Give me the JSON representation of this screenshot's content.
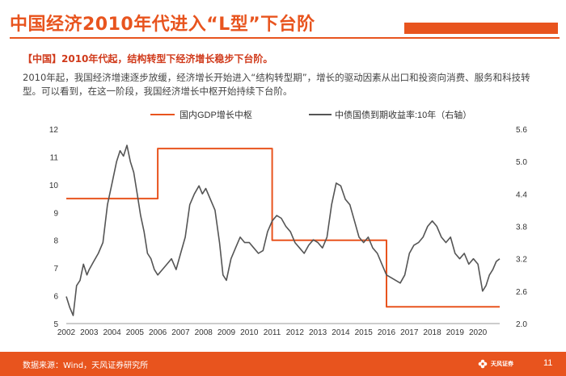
{
  "slide": {
    "title": "中国经济2010年代进入“L型”下台阶",
    "highlight": "【中国】2010年代起，结构转型下经济增长稳步下台阶。",
    "body": "2010年起，我国经济增速逐步放缓，经济增长开始进入“结构转型期”，增长的驱动因素从出口和投资向消费、服务和科技转型。可以看到，在这一阶段，我国经济增长中枢开始持续下台阶。",
    "source": "数据来源：Wind，天风证券研究所",
    "page_number": "11",
    "logo_text": "天风证券",
    "accent_color": "#e8541e"
  },
  "chart_data": {
    "type": "line",
    "xlim": [
      2002,
      2020.95
    ],
    "x_ticks": [
      "2002",
      "2003",
      "2004",
      "2005",
      "2006",
      "2007",
      "2008",
      "2009",
      "2010",
      "2011",
      "2012",
      "2013",
      "2014",
      "2015",
      "2016",
      "2017",
      "2018",
      "2019",
      "2020"
    ],
    "ylim_left": [
      5,
      12
    ],
    "y_ticks_left": [
      "5",
      "6",
      "7",
      "8",
      "9",
      "10",
      "11",
      "12"
    ],
    "ylim_right": [
      2.0,
      5.6
    ],
    "y_ticks_right": [
      "2.0",
      "2.6",
      "3.2",
      "3.8",
      "4.4",
      "5.0",
      "5.6"
    ],
    "grid": false,
    "legend_position": "top",
    "series": [
      {
        "name": "国内GDP增长中枢",
        "axis": "left",
        "color": "#e8541e",
        "style": "step",
        "x": [
          2002,
          2006,
          2006,
          2011,
          2011,
          2016,
          2016,
          2020.95
        ],
        "values": [
          9.5,
          9.5,
          11.3,
          11.3,
          8.0,
          8.0,
          5.6,
          5.6
        ]
      },
      {
        "name": "中债国债到期收益率:10年（右轴）",
        "axis": "right",
        "color": "#555555",
        "style": "line",
        "x": [
          2002.0,
          2002.15,
          2002.3,
          2002.45,
          2002.6,
          2002.75,
          2002.9,
          2003.0,
          2003.2,
          2003.4,
          2003.6,
          2003.8,
          2004.0,
          2004.2,
          2004.35,
          2004.5,
          2004.65,
          2004.8,
          2004.95,
          2005.1,
          2005.25,
          2005.4,
          2005.55,
          2005.7,
          2005.85,
          2006.0,
          2006.2,
          2006.4,
          2006.6,
          2006.8,
          2007.0,
          2007.2,
          2007.4,
          2007.6,
          2007.8,
          2007.95,
          2008.1,
          2008.3,
          2008.5,
          2008.7,
          2008.85,
          2009.0,
          2009.2,
          2009.4,
          2009.6,
          2009.8,
          2010.0,
          2010.2,
          2010.4,
          2010.6,
          2010.8,
          2011.0,
          2011.2,
          2011.4,
          2011.6,
          2011.8,
          2012.0,
          2012.2,
          2012.4,
          2012.6,
          2012.8,
          2013.0,
          2013.2,
          2013.4,
          2013.6,
          2013.8,
          2014.0,
          2014.2,
          2014.4,
          2014.6,
          2014.8,
          2015.0,
          2015.2,
          2015.4,
          2015.6,
          2015.8,
          2016.0,
          2016.2,
          2016.4,
          2016.6,
          2016.8,
          2017.0,
          2017.2,
          2017.4,
          2017.6,
          2017.8,
          2018.0,
          2018.2,
          2018.4,
          2018.6,
          2018.8,
          2019.0,
          2019.2,
          2019.4,
          2019.6,
          2019.8,
          2020.0,
          2020.2,
          2020.35,
          2020.5,
          2020.65,
          2020.8,
          2020.95
        ],
        "values": [
          2.5,
          2.3,
          2.15,
          2.7,
          2.8,
          3.1,
          2.9,
          3.0,
          3.15,
          3.3,
          3.5,
          4.2,
          4.6,
          5.0,
          5.2,
          5.1,
          5.3,
          5.0,
          4.8,
          4.4,
          4.0,
          3.7,
          3.3,
          3.2,
          3.0,
          2.9,
          3.0,
          3.1,
          3.2,
          3.0,
          3.3,
          3.6,
          4.2,
          4.4,
          4.55,
          4.4,
          4.5,
          4.3,
          4.1,
          3.5,
          2.9,
          2.8,
          3.2,
          3.4,
          3.6,
          3.5,
          3.5,
          3.4,
          3.3,
          3.35,
          3.7,
          3.9,
          4.0,
          3.95,
          3.8,
          3.7,
          3.5,
          3.4,
          3.3,
          3.45,
          3.55,
          3.5,
          3.4,
          3.6,
          4.2,
          4.6,
          4.55,
          4.3,
          4.2,
          3.9,
          3.6,
          3.5,
          3.6,
          3.4,
          3.3,
          3.1,
          2.9,
          2.85,
          2.8,
          2.75,
          2.9,
          3.3,
          3.45,
          3.5,
          3.6,
          3.8,
          3.9,
          3.8,
          3.6,
          3.5,
          3.6,
          3.3,
          3.2,
          3.3,
          3.1,
          3.2,
          3.1,
          2.6,
          2.7,
          2.9,
          3.0,
          3.15,
          3.2
        ]
      }
    ]
  }
}
